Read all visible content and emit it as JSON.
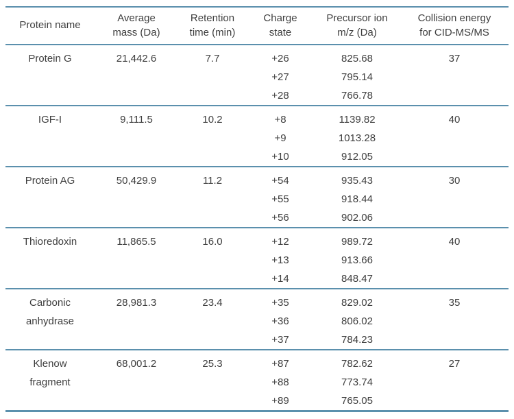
{
  "colors": {
    "rule": "#5b90ad",
    "text": "#3e3e3e",
    "background": "#ffffff"
  },
  "table": {
    "columns": [
      {
        "key": "protein",
        "label": "Protein name"
      },
      {
        "key": "mass",
        "label": "Average\nmass (Da)"
      },
      {
        "key": "retention",
        "label": "Retention\ntime (min)"
      },
      {
        "key": "charge",
        "label": "Charge\nstate"
      },
      {
        "key": "mz",
        "label": "Precursor ion\nm/z (Da)"
      },
      {
        "key": "collision",
        "label": "Collision energy\nfor CID-MS/MS"
      }
    ],
    "rows": [
      {
        "protein": "Protein G",
        "average_mass_da": "21,442.6",
        "retention_time_min": "7.7",
        "charge_states": [
          "+26",
          "+27",
          "+28"
        ],
        "precursor_mz_da": [
          "825.68",
          "795.14",
          "766.78"
        ],
        "collision_energy": "37"
      },
      {
        "protein": "IGF-I",
        "average_mass_da": "9,111.5",
        "retention_time_min": "10.2",
        "charge_states": [
          "+8",
          "+9",
          "+10"
        ],
        "precursor_mz_da": [
          "1139.82",
          "1013.28",
          "912.05"
        ],
        "collision_energy": "40"
      },
      {
        "protein": "Protein AG",
        "average_mass_da": "50,429.9",
        "retention_time_min": "11.2",
        "charge_states": [
          "+54",
          "+55",
          "+56"
        ],
        "precursor_mz_da": [
          "935.43",
          "918.44",
          "902.06"
        ],
        "collision_energy": "30"
      },
      {
        "protein": "Thioredoxin",
        "average_mass_da": "11,865.5",
        "retention_time_min": "16.0",
        "charge_states": [
          "+12",
          "+13",
          "+14"
        ],
        "precursor_mz_da": [
          "989.72",
          "913.66",
          "848.47"
        ],
        "collision_energy": "40"
      },
      {
        "protein": "Carbonic\nanhydrase",
        "average_mass_da": "28,981.3",
        "retention_time_min": "23.4",
        "charge_states": [
          "+35",
          "+36",
          "+37"
        ],
        "precursor_mz_da": [
          "829.02",
          "806.02",
          "784.23"
        ],
        "collision_energy": "35"
      },
      {
        "protein": "Klenow\nfragment",
        "average_mass_da": "68,001.2",
        "retention_time_min": "25.3",
        "charge_states": [
          "+87",
          "+88",
          "+89"
        ],
        "precursor_mz_da": [
          "782.62",
          "773.74",
          "765.05"
        ],
        "collision_energy": "27"
      }
    ]
  }
}
